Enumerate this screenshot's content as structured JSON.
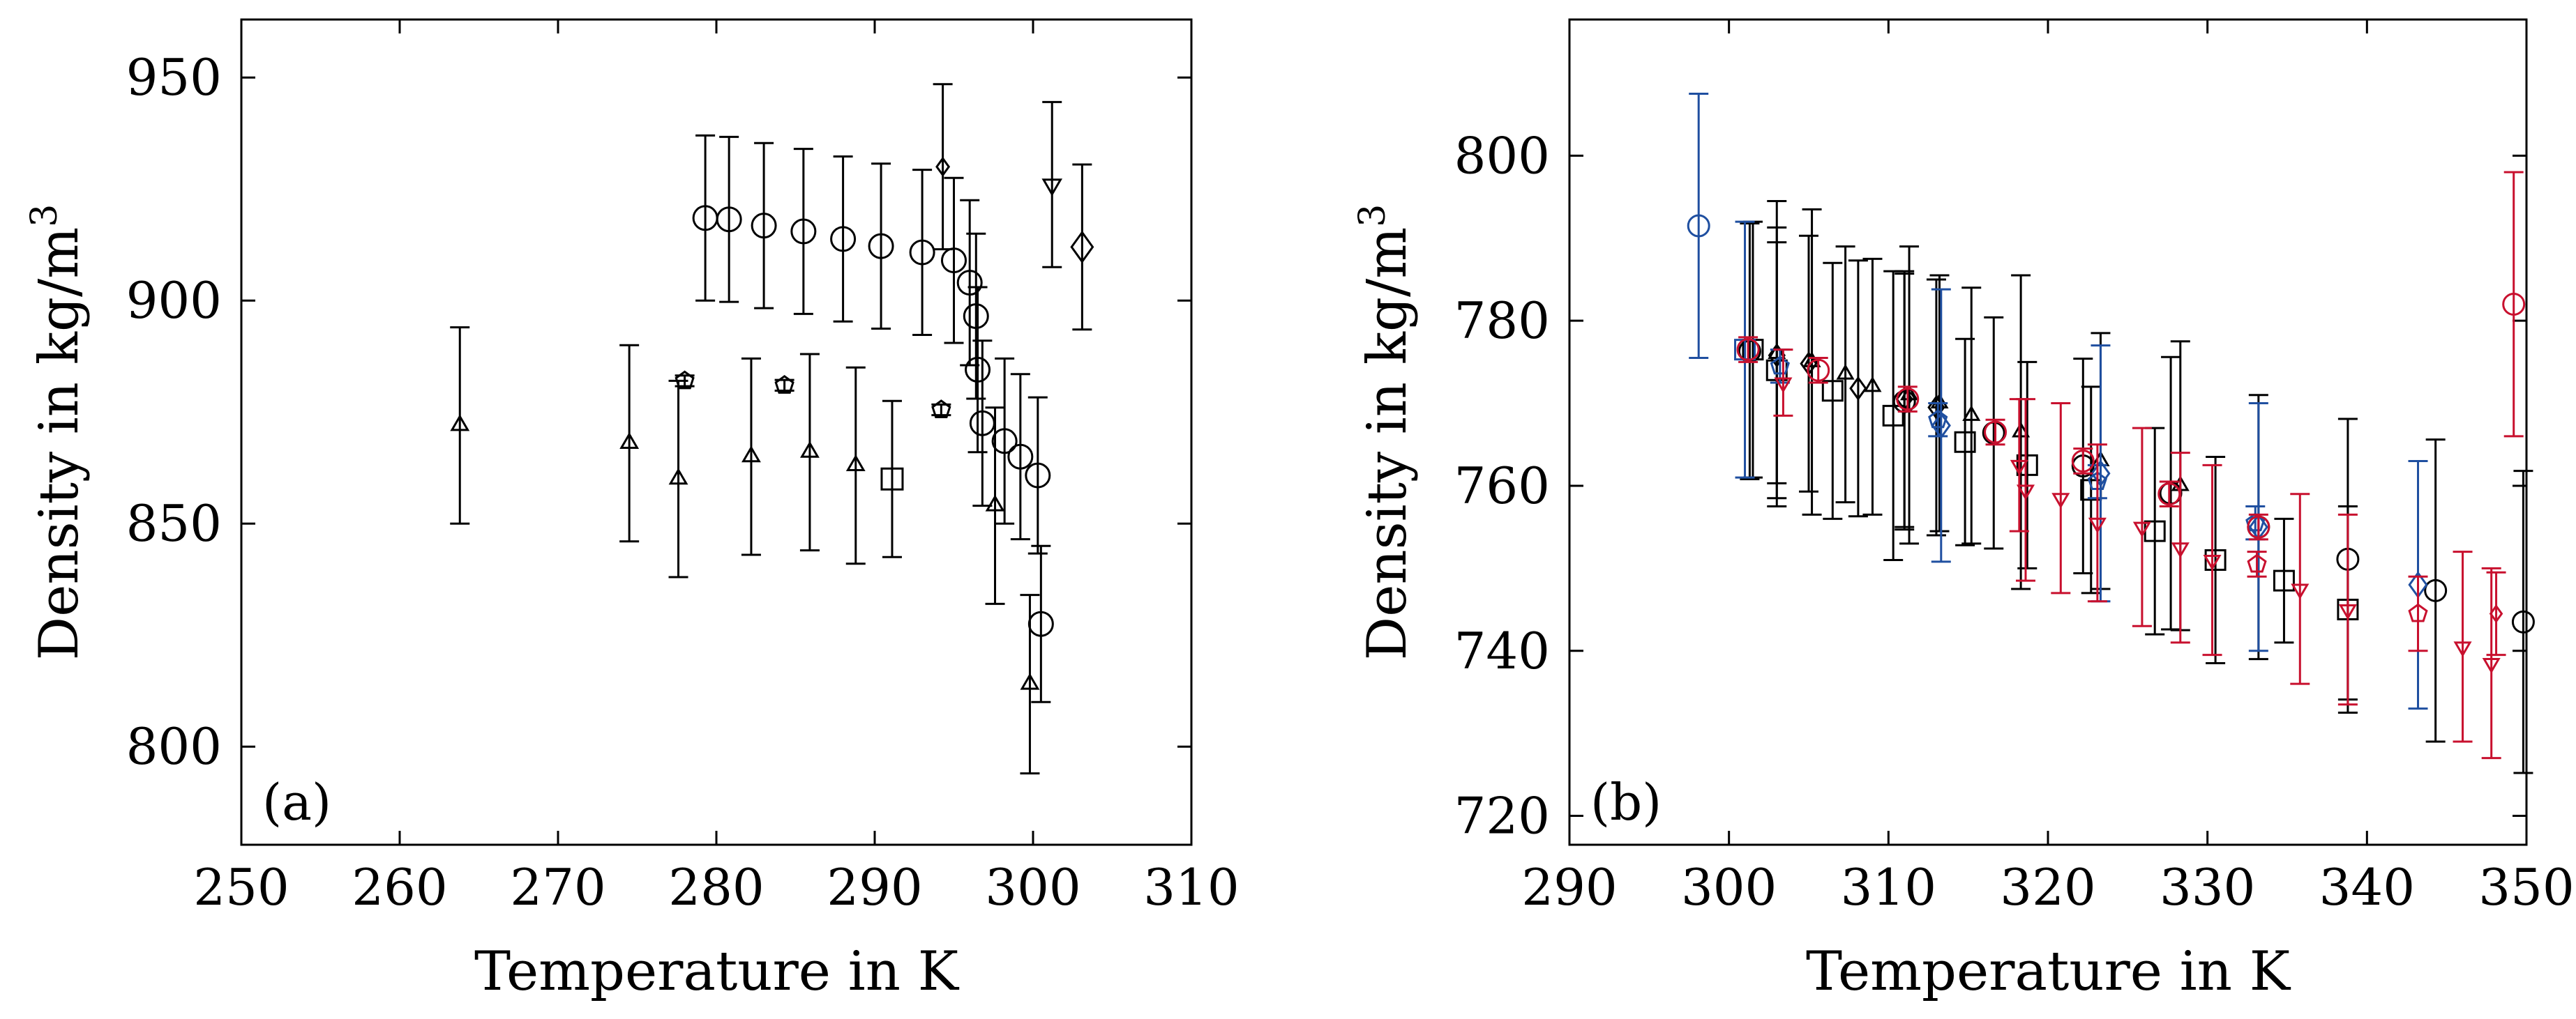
{
  "chart_data": [
    {
      "type": "scatter",
      "panel_label": "(a)",
      "xlabel": "Temperature in K",
      "ylabel": "Density in kg/m³",
      "ylabel_main": "Density in kg/m",
      "ylabel_sup": "3",
      "xlim": [
        250,
        310
      ],
      "ylim": [
        778,
        963
      ],
      "xticks": [
        250,
        260,
        270,
        280,
        290,
        300,
        310
      ],
      "yticks": [
        800,
        850,
        900,
        950
      ],
      "xtick_labels": [
        "250",
        "260",
        "270",
        "280",
        "290",
        "300",
        "310"
      ],
      "ytick_labels": [
        "800",
        "850",
        "900",
        "950"
      ],
      "grid": false,
      "series": [
        {
          "name": "circles",
          "marker": "circle",
          "color": "#000000",
          "size": 17,
          "points": [
            {
              "x": 279.3,
              "y": 918.5,
              "err": 18.5
            },
            {
              "x": 280.8,
              "y": 918.2,
              "err": 18.5
            },
            {
              "x": 283.0,
              "y": 916.8,
              "err": 18.5
            },
            {
              "x": 285.5,
              "y": 915.5,
              "err": 18.5
            },
            {
              "x": 288.0,
              "y": 913.8,
              "err": 18.5
            },
            {
              "x": 290.4,
              "y": 912.2,
              "err": 18.5
            },
            {
              "x": 293.0,
              "y": 910.8,
              "err": 18.5
            },
            {
              "x": 295.0,
              "y": 909.0,
              "err": 18.5
            },
            {
              "x": 296.0,
              "y": 904.0,
              "err": 18.5
            },
            {
              "x": 296.4,
              "y": 896.5,
              "err": 18.5
            },
            {
              "x": 296.5,
              "y": 884.5,
              "err": 18.5
            },
            {
              "x": 296.8,
              "y": 872.5,
              "err": 18.5
            },
            {
              "x": 298.2,
              "y": 868.5,
              "err": 18.5
            },
            {
              "x": 299.2,
              "y": 865.0,
              "err": 18.5
            },
            {
              "x": 300.3,
              "y": 860.8,
              "err": 17.5
            },
            {
              "x": 300.5,
              "y": 827.5,
              "err": 17.5
            }
          ]
        },
        {
          "name": "triangles-up",
          "marker": "triangle-up",
          "color": "#000000",
          "size": 13,
          "points": [
            {
              "x": 263.8,
              "y": 872.0,
              "err": 22
            },
            {
              "x": 274.5,
              "y": 868.0,
              "err": 22
            },
            {
              "x": 277.6,
              "y": 860.0,
              "err": 22
            },
            {
              "x": 282.2,
              "y": 865.0,
              "err": 22
            },
            {
              "x": 285.9,
              "y": 866.0,
              "err": 22
            },
            {
              "x": 288.8,
              "y": 863.0,
              "err": 22
            },
            {
              "x": 297.6,
              "y": 854.0,
              "err": 22
            },
            {
              "x": 299.8,
              "y": 814.0,
              "err": 20
            }
          ]
        },
        {
          "name": "triangles-down",
          "marker": "triangle-down",
          "color": "#000000",
          "size": 14,
          "points": [
            {
              "x": 301.2,
              "y": 926.0,
              "err": 18.5
            }
          ]
        },
        {
          "name": "pentagons",
          "marker": "pentagon",
          "color": "#000000",
          "size": 13,
          "points": [
            {
              "x": 278.0,
              "y": 882.0,
              "err": 1.2
            },
            {
              "x": 284.3,
              "y": 881.0,
              "err": 1.2
            },
            {
              "x": 294.2,
              "y": 875.5,
              "err": 1.2
            }
          ]
        },
        {
          "name": "squares",
          "marker": "square",
          "color": "#000000",
          "size": 15,
          "points": [
            {
              "x": 291.1,
              "y": 860.0,
              "err": 17.5
            }
          ]
        },
        {
          "name": "diamonds",
          "marker": "diamond",
          "color": "#000000",
          "size": 21,
          "points": [
            {
              "x": 303.1,
              "y": 912.0,
              "err": 18.5
            }
          ]
        },
        {
          "name": "small-diamonds",
          "marker": "diamond",
          "color": "#000000",
          "size": 12,
          "points": [
            {
              "x": 294.3,
              "y": 930.0,
              "err": 18.5
            }
          ]
        }
      ]
    },
    {
      "type": "scatter",
      "panel_label": "(b)",
      "xlabel": "Temperature in K",
      "ylabel": "Density in kg/m³",
      "ylabel_main": "Density in kg/m",
      "ylabel_sup": "3",
      "xlim": [
        290,
        350
      ],
      "ylim": [
        716.5,
        816.5
      ],
      "xticks": [
        290,
        300,
        310,
        320,
        330,
        340,
        350
      ],
      "yticks": [
        720,
        740,
        760,
        780,
        800
      ],
      "xtick_labels": [
        "290",
        "300",
        "310",
        "320",
        "330",
        "340",
        "350"
      ],
      "ytick_labels": [
        "720",
        "740",
        "760",
        "780",
        "800"
      ],
      "grid": false,
      "series": [
        {
          "name": "black-circles",
          "marker": "circle",
          "color": "#000000",
          "size": 15,
          "points": [
            {
              "x": 301.3,
              "y": 776.3,
              "err": 15.5
            },
            {
              "x": 311.0,
              "y": 770.2,
              "err": 15.5
            },
            {
              "x": 316.6,
              "y": 766.4,
              "err": 14.0
            },
            {
              "x": 322.2,
              "y": 762.4,
              "err": 13.0
            },
            {
              "x": 327.7,
              "y": 759.1,
              "err": 16.5
            },
            {
              "x": 333.2,
              "y": 755.0,
              "err": 16.0
            },
            {
              "x": 338.8,
              "y": 751.1,
              "err": 17.0
            },
            {
              "x": 344.3,
              "y": 747.3,
              "err": 18.3
            },
            {
              "x": 349.8,
              "y": 743.5,
              "err": 18.3
            }
          ]
        },
        {
          "name": "black-squares",
          "marker": "square",
          "color": "#000000",
          "size": 14,
          "points": [
            {
              "x": 301.5,
              "y": 776.5,
              "err": 15.5
            },
            {
              "x": 303.0,
              "y": 774.0,
              "err": 15.5
            },
            {
              "x": 306.5,
              "y": 771.5,
              "err": 15.5
            },
            {
              "x": 310.3,
              "y": 768.5,
              "err": 17.5
            },
            {
              "x": 314.8,
              "y": 765.3,
              "err": 12.5
            },
            {
              "x": 318.7,
              "y": 762.5,
              "err": 12.5
            },
            {
              "x": 322.7,
              "y": 759.5,
              "err": 12.5
            },
            {
              "x": 326.7,
              "y": 754.5,
              "err": 12.5
            },
            {
              "x": 330.5,
              "y": 751.0,
              "err": 12.5
            },
            {
              "x": 334.8,
              "y": 748.5,
              "err": 7.5
            },
            {
              "x": 338.8,
              "y": 745.0,
              "err": 12.5
            }
          ]
        },
        {
          "name": "black-triangles",
          "marker": "triangle-up",
          "color": "#000000",
          "size": 12,
          "points": [
            {
              "x": 303.0,
              "y": 776.0,
              "err": 18.5
            },
            {
              "x": 305.2,
              "y": 775.0,
              "err": 18.5
            },
            {
              "x": 307.3,
              "y": 773.5,
              "err": 15.5
            },
            {
              "x": 309.0,
              "y": 772.0,
              "err": 15.5
            },
            {
              "x": 311.3,
              "y": 771.0,
              "err": 18.0
            },
            {
              "x": 313.2,
              "y": 770.0,
              "err": 15.5
            },
            {
              "x": 315.2,
              "y": 768.5,
              "err": 15.5
            },
            {
              "x": 318.3,
              "y": 766.5,
              "err": 19.0
            },
            {
              "x": 323.3,
              "y": 763.0,
              "err": 15.5
            },
            {
              "x": 328.3,
              "y": 760.0,
              "err": 17.5
            }
          ]
        },
        {
          "name": "black-diamonds",
          "marker": "diamond",
          "color": "#000000",
          "size": 15,
          "points": [
            {
              "x": 303.0,
              "y": 775.8,
              "err": 15.5
            },
            {
              "x": 305.0,
              "y": 774.8,
              "err": 15.5
            },
            {
              "x": 308.1,
              "y": 771.8,
              "err": 15.5
            },
            {
              "x": 311.0,
              "y": 770.5,
              "err": 15.5
            },
            {
              "x": 313.0,
              "y": 769.5,
              "err": 15.5
            }
          ]
        },
        {
          "name": "blue-circles",
          "marker": "circle",
          "color": "#1f4fa0",
          "size": 15,
          "points": [
            {
              "x": 298.1,
              "y": 791.5,
              "err": 16.0
            }
          ]
        },
        {
          "name": "blue-squares",
          "marker": "square",
          "color": "#1f4fa0",
          "size": 14,
          "points": [
            {
              "x": 301.0,
              "y": 776.5,
              "err": 15.5
            }
          ]
        },
        {
          "name": "blue-diamonds",
          "marker": "diamond",
          "color": "#1f4fa0",
          "size": 17,
          "points": [
            {
              "x": 313.3,
              "y": 767.3,
              "err": 16.5
            },
            {
              "x": 323.3,
              "y": 761.5,
              "err": 15.5
            },
            {
              "x": 333.2,
              "y": 755.0,
              "err": 15.0
            },
            {
              "x": 343.2,
              "y": 748.0,
              "err": 15.0
            }
          ]
        },
        {
          "name": "blue-pentagons",
          "marker": "pentagon",
          "color": "#1f4fa0",
          "size": 13,
          "points": [
            {
              "x": 303.2,
              "y": 774.5,
              "err": 2.0
            },
            {
              "x": 313.1,
              "y": 768.0,
              "err": 2.0
            },
            {
              "x": 323.1,
              "y": 760.5,
              "err": 2.0
            },
            {
              "x": 333.0,
              "y": 755.5,
              "err": 2.0
            }
          ]
        },
        {
          "name": "red-circles",
          "marker": "circle",
          "color": "#c8102e",
          "size": 15,
          "points": [
            {
              "x": 301.2,
              "y": 776.5,
              "err": 1.5
            },
            {
              "x": 305.6,
              "y": 774.0,
              "err": 1.5
            },
            {
              "x": 311.2,
              "y": 770.5,
              "err": 1.5
            },
            {
              "x": 316.7,
              "y": 766.5,
              "err": 1.5
            },
            {
              "x": 322.2,
              "y": 763.0,
              "err": 1.5
            },
            {
              "x": 327.6,
              "y": 759.0,
              "err": 1.5
            },
            {
              "x": 333.2,
              "y": 755.0,
              "err": 1.5
            },
            {
              "x": 349.2,
              "y": 782.0,
              "err": 16.0
            }
          ]
        },
        {
          "name": "red-triangles-down",
          "marker": "triangle-down",
          "color": "#c8102e",
          "size": 12,
          "points": [
            {
              "x": 303.4,
              "y": 772.5,
              "err": 4.0
            },
            {
              "x": 318.2,
              "y": 762.5,
              "err": 8.0
            },
            {
              "x": 318.6,
              "y": 759.5,
              "err": 11.0
            },
            {
              "x": 320.8,
              "y": 758.5,
              "err": 11.5
            },
            {
              "x": 323.1,
              "y": 755.5,
              "err": 9.5
            },
            {
              "x": 325.9,
              "y": 755.0,
              "err": 12.0
            },
            {
              "x": 328.3,
              "y": 752.5,
              "err": 11.5
            },
            {
              "x": 330.3,
              "y": 751.0,
              "err": 11.5
            },
            {
              "x": 335.8,
              "y": 747.5,
              "err": 11.5
            },
            {
              "x": 338.8,
              "y": 745.0,
              "err": 11.5
            },
            {
              "x": 346.0,
              "y": 740.5,
              "err": 11.5
            },
            {
              "x": 347.8,
              "y": 738.5,
              "err": 11.5
            }
          ]
        },
        {
          "name": "red-pentagons",
          "marker": "pentagon",
          "color": "#c8102e",
          "size": 13,
          "points": [
            {
              "x": 333.1,
              "y": 750.5,
              "err": 1.5
            },
            {
              "x": 343.2,
              "y": 744.5,
              "err": 4.5
            }
          ]
        },
        {
          "name": "red-diamonds",
          "marker": "diamond",
          "color": "#c8102e",
          "size": 11,
          "points": [
            {
              "x": 348.1,
              "y": 744.5,
              "err": 5.0
            }
          ]
        }
      ]
    }
  ]
}
